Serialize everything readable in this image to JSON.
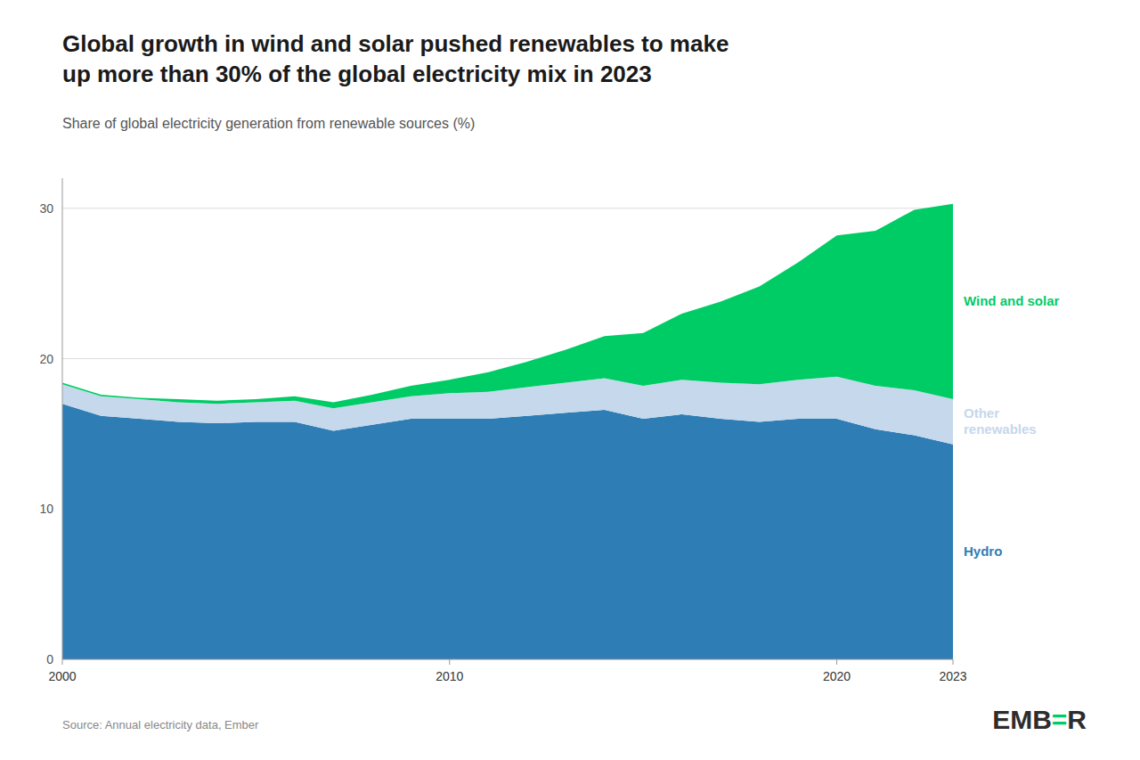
{
  "chart_data": {
    "type": "area",
    "title": "Global growth in wind and solar pushed renewables to make\nup more than 30% of the global electricity mix in 2023",
    "subtitle": "Share of global electricity generation from renewable sources (%)",
    "x": [
      2000,
      2001,
      2002,
      2003,
      2004,
      2005,
      2006,
      2007,
      2008,
      2009,
      2010,
      2011,
      2012,
      2013,
      2014,
      2015,
      2016,
      2017,
      2018,
      2019,
      2020,
      2021,
      2022,
      2023
    ],
    "series": [
      {
        "name": "Hydro",
        "color": "#2e7db5",
        "values": [
          17.0,
          16.2,
          16.0,
          15.8,
          15.7,
          15.8,
          15.8,
          15.2,
          15.6,
          16.0,
          16.0,
          16.0,
          16.2,
          16.4,
          16.6,
          16.0,
          16.3,
          16.0,
          15.8,
          16.0,
          16.0,
          15.3,
          14.9,
          14.3
        ]
      },
      {
        "name": "Other\nrenewables",
        "color": "#c5d8ec",
        "values": [
          1.3,
          1.3,
          1.3,
          1.3,
          1.3,
          1.3,
          1.4,
          1.5,
          1.5,
          1.5,
          1.7,
          1.8,
          1.9,
          2.0,
          2.1,
          2.2,
          2.3,
          2.4,
          2.5,
          2.6,
          2.8,
          2.9,
          3.0,
          3.0
        ]
      },
      {
        "name": "Wind and solar",
        "color": "#00cc66",
        "values": [
          0.1,
          0.1,
          0.1,
          0.2,
          0.2,
          0.2,
          0.3,
          0.4,
          0.5,
          0.7,
          0.9,
          1.3,
          1.7,
          2.2,
          2.8,
          3.5,
          4.4,
          5.4,
          6.5,
          7.8,
          9.4,
          10.3,
          12.0,
          13.0
        ]
      }
    ],
    "stacked": true,
    "xlim": [
      2000,
      2023
    ],
    "xticks": [
      2000,
      2010,
      2020,
      2023
    ],
    "ylim": [
      0,
      32
    ],
    "yticks": [
      0,
      10,
      20,
      30
    ],
    "grid": true,
    "annotations": [
      {
        "text": "Source: Annual electricity data, Ember",
        "color": "#888888"
      },
      {
        "text": "EMB",
        "color": "#2d2d2d"
      },
      {
        "text": "=",
        "color": "#00cc66"
      },
      {
        "text": "R",
        "color": "#2d2d2d"
      }
    ]
  }
}
